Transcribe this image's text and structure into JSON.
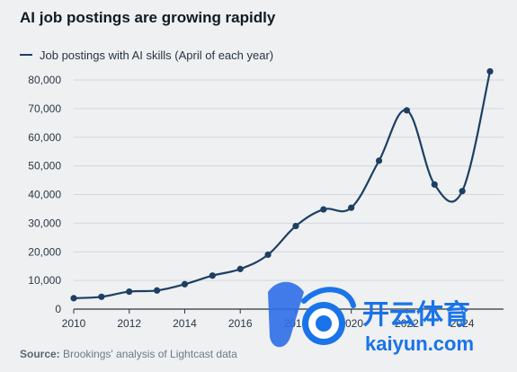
{
  "chart_data": {
    "type": "line",
    "title": "AI job postings are growing rapidly",
    "xlabel": "",
    "ylabel": "",
    "series": [
      {
        "name": "Job postings with AI skills (April of each year)",
        "color": "#1d3f63",
        "x": [
          2010,
          2011,
          2012,
          2013,
          2014,
          2015,
          2016,
          2017,
          2018,
          2019,
          2020,
          2021,
          2022,
          2023,
          2024,
          2025
        ],
        "values": [
          3800,
          4300,
          6100,
          6500,
          8700,
          11700,
          14000,
          19000,
          29000,
          34800,
          35400,
          51800,
          69400,
          43500,
          41200,
          83000
        ]
      }
    ],
    "xlim": [
      2010,
      2025
    ],
    "ylim": [
      0,
      80000
    ],
    "xticks": [
      "2010",
      "2012",
      "2014",
      "2016",
      "2018",
      "2020",
      "2022",
      "2024"
    ],
    "yticks": [
      "0",
      "10,000",
      "20,000",
      "30,000",
      "40,000",
      "50,000",
      "60,000",
      "70,000",
      "80,000"
    ],
    "grid": "horizontal",
    "legend": "top-left",
    "source_label": "Source:",
    "source_text": "Brookings' analysis of Lightcast data"
  },
  "watermark": {
    "logo_text": "开云体育",
    "url_text": "kaiyun.com"
  }
}
